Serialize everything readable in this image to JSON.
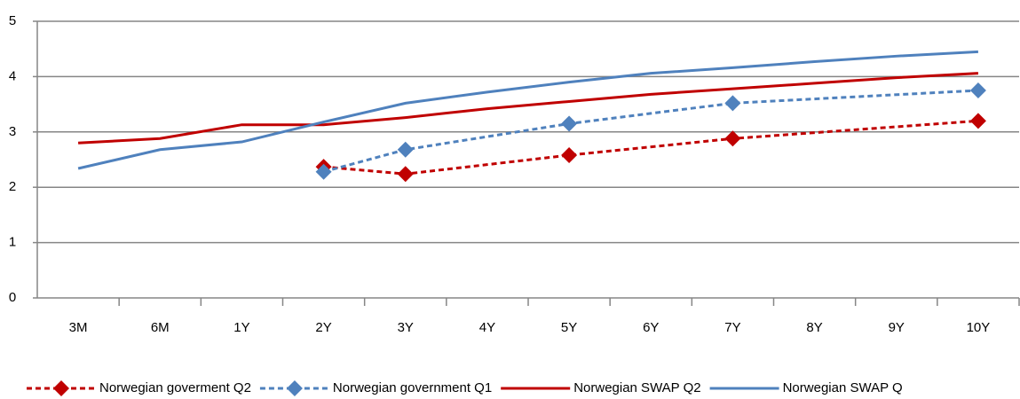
{
  "chart_data": {
    "type": "line",
    "categories": [
      "3M",
      "6M",
      "1Y",
      "2Y",
      "3Y",
      "4Y",
      "5Y",
      "6Y",
      "7Y",
      "8Y",
      "9Y",
      "10Y"
    ],
    "series": [
      {
        "name": "Norwegian goverment Q2",
        "color": "#c00000",
        "dashed": true,
        "marker": "diamond",
        "values": [
          null,
          null,
          null,
          2.37,
          2.24,
          null,
          2.58,
          null,
          2.88,
          null,
          null,
          3.2
        ]
      },
      {
        "name": "Norwegian government Q1",
        "color": "#4f81bd",
        "dashed": true,
        "marker": "diamond",
        "values": [
          null,
          null,
          null,
          2.28,
          2.68,
          null,
          3.15,
          null,
          3.52,
          null,
          null,
          3.75
        ]
      },
      {
        "name": "Norwegian SWAP Q2",
        "color": "#c00000",
        "dashed": false,
        "marker": "none",
        "values": [
          2.8,
          2.88,
          3.13,
          3.13,
          3.26,
          3.42,
          3.55,
          3.68,
          3.78,
          3.88,
          3.98,
          4.06
        ]
      },
      {
        "name": "Norwegian SWAP Q",
        "color": "#4f81bd",
        "dashed": false,
        "marker": "none",
        "values": [
          2.34,
          2.68,
          2.82,
          3.18,
          3.52,
          3.72,
          3.9,
          4.06,
          4.16,
          4.27,
          4.37,
          4.45
        ]
      }
    ],
    "connect_gaps": true,
    "ylim": [
      0,
      5
    ],
    "yticks": [
      0,
      1,
      2,
      3,
      4,
      5
    ],
    "grid": true,
    "legend": "bottom"
  }
}
